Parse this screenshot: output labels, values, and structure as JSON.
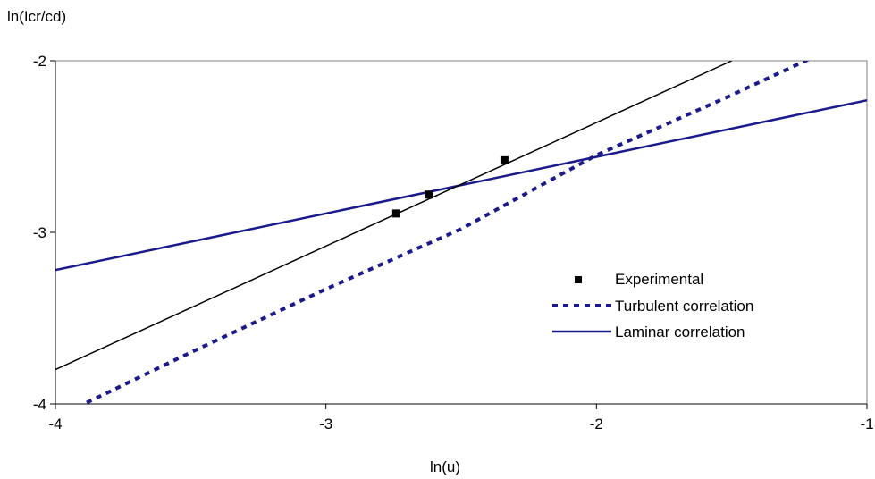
{
  "chart_data": {
    "type": "line",
    "title": "",
    "xlabel": "ln(u)",
    "ylabel": "ln(Icr/cd)",
    "xlim": [
      -4,
      -1
    ],
    "ylim": [
      -4,
      -2
    ],
    "xticks": [
      -4,
      -3,
      -2,
      -1
    ],
    "yticks": [
      -4,
      -3,
      -2
    ],
    "xtick_labels": [
      "-4",
      "-3",
      "-2",
      "-1"
    ],
    "ytick_labels": [
      "-4",
      "-3",
      "-2"
    ],
    "grid": false,
    "legend_position": "center-right",
    "series": [
      {
        "name": "Experimental",
        "style": "markers",
        "marker": "square",
        "color": "#000000",
        "x": [
          -2.74,
          -2.62,
          -2.34
        ],
        "y": [
          -2.89,
          -2.78,
          -2.58
        ]
      },
      {
        "name": "Turbulent correlation",
        "style": "dotted",
        "color": "#1a1a8c",
        "x": [
          -3.92,
          -3.5,
          -3.0,
          -2.5,
          -2.0,
          -1.5,
          -1.2
        ],
        "y": [
          -4.02,
          -3.7,
          -3.33,
          -2.98,
          -2.55,
          -2.2,
          -1.98
        ]
      },
      {
        "name": "Laminar correlation",
        "style": "solid",
        "color": "#1a1a8c",
        "x": [
          -4,
          -1
        ],
        "y": [
          -3.22,
          -2.23
        ]
      },
      {
        "name": "",
        "style": "solid-thin",
        "color": "#000000",
        "x": [
          -4,
          -1.5
        ],
        "y": [
          -3.8,
          -2.0
        ]
      }
    ]
  }
}
